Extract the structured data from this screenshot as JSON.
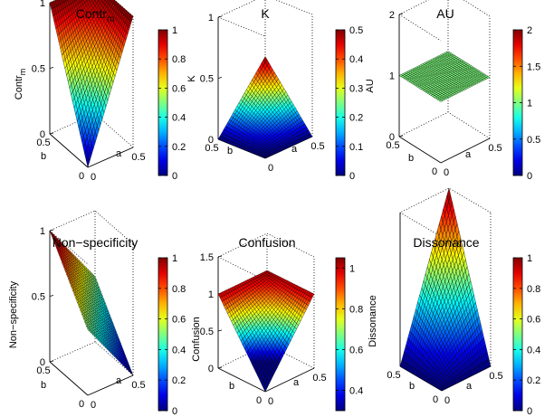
{
  "colormap": "jet",
  "axis_labels": {
    "a": "a",
    "b": "b"
  },
  "chart_data": [
    {
      "type": "surface",
      "title": "Contr",
      "title_sub": "m",
      "zlabel": "Contr",
      "zlabel_sub": "m",
      "xlim": [
        0,
        0.5
      ],
      "ylim": [
        0,
        0.5
      ],
      "zlim": [
        0,
        1
      ],
      "x_ticks": [
        "0",
        "0.5"
      ],
      "y_ticks": [
        "0",
        "0.5"
      ],
      "z_ticks": [
        "0",
        "0.5",
        "1"
      ],
      "colorbar": {
        "ticks": [
          "0",
          "0.2",
          "0.4",
          "0.6",
          "0.8",
          "1"
        ],
        "range": [
          0,
          1
        ]
      },
      "surface": {
        "function": "1-(1-2a)(1-2b)",
        "grid_points": 26,
        "corner_values": {
          "a0_b0": 0,
          "a05_b0": 1,
          "a0_b05": 1,
          "a05_b05": 1
        }
      }
    },
    {
      "type": "surface",
      "title": "K",
      "zlabel": "K",
      "xlim": [
        0,
        0.5
      ],
      "ylim": [
        0,
        0.5
      ],
      "zlim": [
        0,
        1
      ],
      "x_ticks": [
        "0",
        "0.5"
      ],
      "y_ticks": [
        "0.5"
      ],
      "z_ticks": [
        "0",
        "0.5",
        "1"
      ],
      "colorbar": {
        "ticks": [
          "0",
          "0.1",
          "0.2",
          "0.3",
          "0.4",
          "0.5"
        ],
        "range": [
          0,
          0.5
        ]
      },
      "surface": {
        "function": "2ab",
        "grid_points": 26,
        "corner_values": {
          "a0_b0": 0,
          "a05_b0": 0,
          "a0_b05": 0,
          "a05_b05": 0.5
        }
      }
    },
    {
      "type": "surface",
      "title": "AU",
      "zlabel": "AU",
      "xlim": [
        0,
        0.5
      ],
      "ylim": [
        0,
        0.5
      ],
      "zlim": [
        0,
        2
      ],
      "x_ticks": [
        "0",
        "0.5"
      ],
      "y_ticks": [
        "0",
        "0.5"
      ],
      "z_ticks": [
        "0",
        "1",
        "2"
      ],
      "colorbar": {
        "ticks": [
          "0",
          "0.5",
          "1",
          "1.5",
          "2"
        ],
        "range": [
          0,
          2
        ]
      },
      "surface": {
        "function": "1",
        "grid_points": 26,
        "constant_value": 1
      }
    },
    {
      "type": "surface",
      "title": "Non−specificity",
      "zlabel": "Non−specificity",
      "xlim": [
        0,
        0.5
      ],
      "ylim": [
        0,
        0.5
      ],
      "zlim": [
        0,
        1
      ],
      "x_ticks": [
        "0",
        "0.5"
      ],
      "y_ticks": [
        "0",
        "0.5"
      ],
      "z_ticks": [
        "0",
        "0.5",
        "1"
      ],
      "colorbar": {
        "ticks": [
          "0",
          "0.2",
          "0.4",
          "0.6",
          "0.8",
          "1"
        ],
        "range": [
          0,
          1
        ]
      },
      "surface": {
        "function": "0.5+b-a",
        "grid_points": 26,
        "corner_values": {
          "a0_b0": 0.5,
          "a05_b0": 0,
          "a0_b05": 1,
          "a05_b05": 0.5
        }
      }
    },
    {
      "type": "surface",
      "title": "Confusion",
      "zlabel": "Confusion",
      "xlim": [
        0,
        0.5
      ],
      "ylim": [
        0,
        0.5
      ],
      "zlim": [
        0,
        1.5
      ],
      "x_ticks": [
        "0",
        "0.5"
      ],
      "y_ticks": [
        "0"
      ],
      "z_ticks": [
        "0",
        "0.5",
        "1",
        "1.5"
      ],
      "colorbar": {
        "ticks": [
          "0.4",
          "0.6",
          "0.8",
          "1"
        ],
        "range": [
          0.3,
          1.05
        ]
      },
      "surface": {
        "function": "1-(1-2a)(1-2b)",
        "grid_points": 26,
        "corner_values": {
          "a0_b0": 0,
          "a05_b0": 1,
          "a0_b05": 1,
          "a05_b05": 1
        }
      }
    },
    {
      "type": "surface",
      "title": "Dissonance",
      "zlabel": "Dissonance",
      "xlim": [
        0,
        0.5
      ],
      "ylim": [
        0,
        0.5
      ],
      "zlim": [
        0,
        1
      ],
      "x_ticks": [
        "0",
        "0.5"
      ],
      "y_ticks": [
        "0",
        "0.5"
      ],
      "z_ticks": [],
      "colorbar": {
        "ticks": [
          "0",
          "0.2",
          "0.4",
          "0.6",
          "0.8",
          "1"
        ],
        "range": [
          0,
          1
        ]
      },
      "surface": {
        "function": "4ab",
        "grid_points": 26,
        "corner_values": {
          "a0_b0": 0,
          "a05_b0": 0,
          "a0_b05": 0,
          "a05_b05": 1
        }
      }
    }
  ]
}
